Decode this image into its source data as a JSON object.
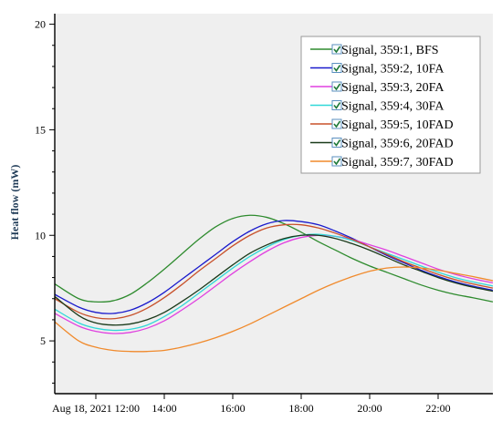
{
  "chart_data": {
    "type": "line",
    "title": "",
    "xlabel": "",
    "ylabel": "Heat flow (mW)",
    "grid": false,
    "legend_placement": "top-right",
    "background": "#efefef",
    "xlim": [
      10.8,
      23.6
    ],
    "ylim": [
      2.5,
      20.5
    ],
    "x_ticks": [
      {
        "value": 12,
        "label": "Aug 18, 2021 12:00"
      },
      {
        "value": 14,
        "label": "14:00"
      },
      {
        "value": 16,
        "label": "16:00"
      },
      {
        "value": 18,
        "label": "18:00"
      },
      {
        "value": 20,
        "label": "20:00"
      },
      {
        "value": 22,
        "label": "22:00"
      }
    ],
    "y_ticks": [
      {
        "value": 5,
        "label": "5"
      },
      {
        "value": 10,
        "label": "10"
      },
      {
        "value": 15,
        "label": "15"
      },
      {
        "value": 20,
        "label": "20"
      }
    ],
    "x": [
      10.8,
      11.5,
      12.0,
      12.5,
      13.0,
      13.5,
      14.0,
      14.5,
      15.0,
      15.5,
      16.0,
      16.5,
      17.0,
      17.5,
      18.0,
      18.5,
      19.0,
      19.5,
      20.0,
      20.5,
      21.0,
      21.5,
      22.0,
      22.5,
      23.0,
      23.6
    ],
    "series": [
      {
        "name": "Signal, 359:1, BFS",
        "color": "#2e8b2e",
        "values": [
          7.7,
          7.0,
          6.85,
          6.9,
          7.2,
          7.75,
          8.4,
          9.1,
          9.8,
          10.4,
          10.8,
          10.95,
          10.85,
          10.55,
          10.15,
          9.7,
          9.3,
          8.9,
          8.55,
          8.25,
          7.95,
          7.65,
          7.4,
          7.2,
          7.05,
          6.85
        ]
      },
      {
        "name": "Signal, 359:2, 10FA",
        "color": "#1a1acc",
        "values": [
          7.2,
          6.6,
          6.35,
          6.3,
          6.45,
          6.8,
          7.3,
          7.9,
          8.5,
          9.1,
          9.7,
          10.2,
          10.55,
          10.7,
          10.65,
          10.5,
          10.2,
          9.85,
          9.45,
          9.05,
          8.7,
          8.35,
          8.05,
          7.8,
          7.6,
          7.4
        ]
      },
      {
        "name": "Signal, 359:3, 20FA",
        "color": "#e040e0",
        "values": [
          6.3,
          5.7,
          5.45,
          5.35,
          5.4,
          5.6,
          5.95,
          6.45,
          7.0,
          7.6,
          8.2,
          8.75,
          9.25,
          9.65,
          9.9,
          10.0,
          9.95,
          9.8,
          9.55,
          9.3,
          9.0,
          8.7,
          8.4,
          8.15,
          7.95,
          7.75
        ]
      },
      {
        "name": "Signal, 359:4, 30FA",
        "color": "#30d8d8",
        "values": [
          6.5,
          5.85,
          5.6,
          5.5,
          5.55,
          5.75,
          6.15,
          6.65,
          7.25,
          7.85,
          8.45,
          9.0,
          9.45,
          9.8,
          10.0,
          10.05,
          9.95,
          9.75,
          9.45,
          9.15,
          8.85,
          8.55,
          8.25,
          8.0,
          7.8,
          7.6
        ]
      },
      {
        "name": "Signal, 359:5, 10FAD",
        "color": "#c8502a",
        "values": [
          7.0,
          6.35,
          6.1,
          6.05,
          6.2,
          6.55,
          7.05,
          7.65,
          8.3,
          8.9,
          9.5,
          10.0,
          10.35,
          10.5,
          10.5,
          10.35,
          10.1,
          9.8,
          9.45,
          9.1,
          8.75,
          8.45,
          8.15,
          7.9,
          7.7,
          7.5
        ]
      },
      {
        "name": "Signal, 359:6, 20FAD",
        "color": "#1a3a1a",
        "values": [
          7.1,
          6.2,
          5.85,
          5.75,
          5.8,
          6.0,
          6.35,
          6.85,
          7.4,
          8.0,
          8.6,
          9.15,
          9.55,
          9.85,
          10.0,
          10.0,
          9.85,
          9.6,
          9.3,
          8.95,
          8.6,
          8.3,
          8.0,
          7.75,
          7.55,
          7.35
        ]
      },
      {
        "name": "Signal, 359:7, 30FAD",
        "color": "#f08a2c",
        "values": [
          5.9,
          5.0,
          4.7,
          4.55,
          4.5,
          4.5,
          4.55,
          4.7,
          4.9,
          5.15,
          5.45,
          5.8,
          6.2,
          6.6,
          7.0,
          7.4,
          7.75,
          8.05,
          8.3,
          8.45,
          8.5,
          8.45,
          8.35,
          8.2,
          8.05,
          7.85
        ]
      }
    ]
  }
}
